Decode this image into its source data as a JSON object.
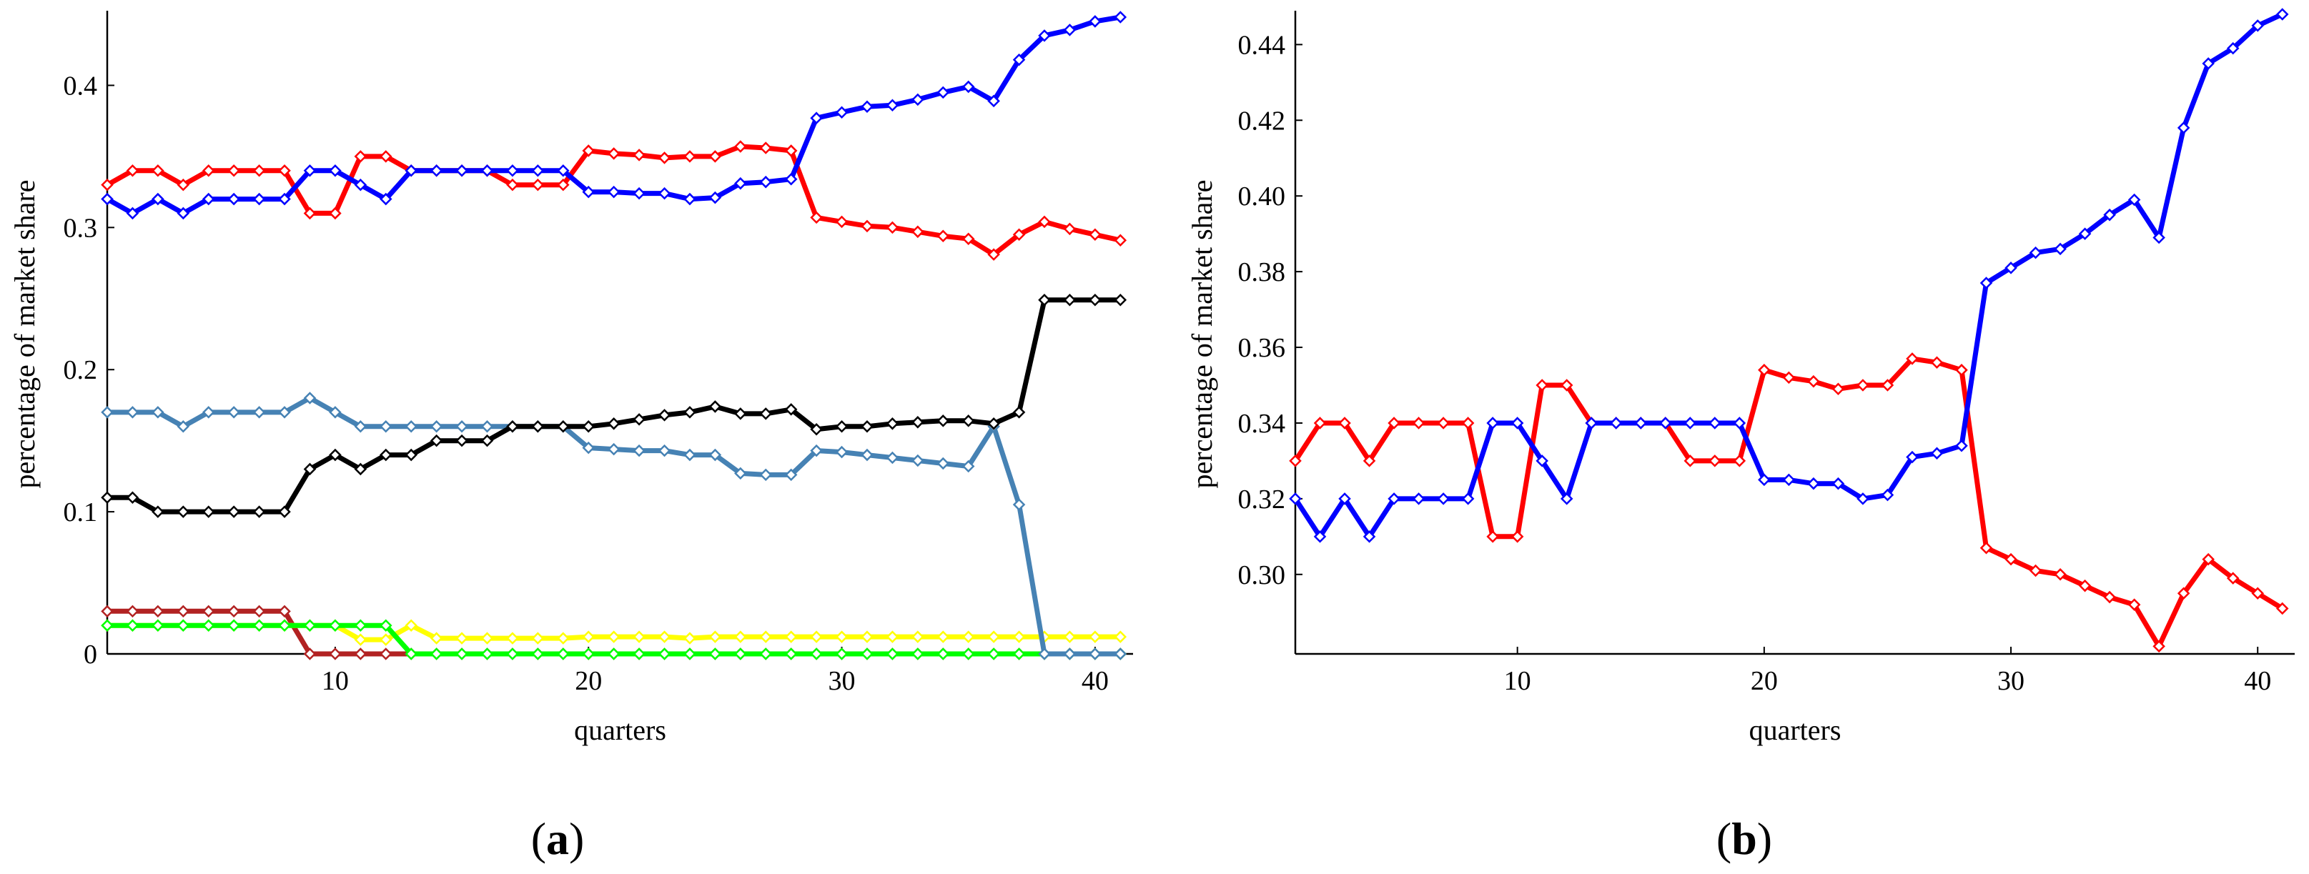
{
  "chart_data": [
    {
      "type": "line",
      "panel_label_open": "(",
      "panel_label_letter": "a",
      "panel_label_close": ")",
      "xlabel": "quarters",
      "ylabel": "percentage of market share",
      "xlim": [
        1,
        41.5
      ],
      "ylim": [
        0,
        0.45
      ],
      "xticks": [
        10,
        20,
        30,
        40
      ],
      "xtick_labels": [
        "10",
        "20",
        "30",
        "40"
      ],
      "yticks": [
        0,
        0.1,
        0.2,
        0.3,
        0.4
      ],
      "ytick_labels": [
        "0",
        "0.1",
        "0.2",
        "0.3",
        "0.4"
      ],
      "x": [
        1,
        2,
        3,
        4,
        5,
        6,
        7,
        8,
        9,
        10,
        11,
        12,
        13,
        14,
        15,
        16,
        17,
        18,
        19,
        20,
        21,
        22,
        23,
        24,
        25,
        26,
        27,
        28,
        29,
        30,
        31,
        32,
        33,
        34,
        35,
        36,
        37,
        38,
        39,
        40,
        41
      ],
      "series": [
        {
          "name": "blue",
          "color": "#0000ff",
          "values": [
            0.32,
            0.31,
            0.32,
            0.31,
            0.32,
            0.32,
            0.32,
            0.32,
            0.34,
            0.34,
            0.33,
            0.32,
            0.34,
            0.34,
            0.34,
            0.34,
            0.34,
            0.34,
            0.34,
            0.325,
            0.325,
            0.324,
            0.324,
            0.32,
            0.321,
            0.331,
            0.332,
            0.334,
            0.377,
            0.381,
            0.385,
            0.386,
            0.39,
            0.395,
            0.399,
            0.389,
            0.418,
            0.435,
            0.439,
            0.445,
            0.448
          ]
        },
        {
          "name": "red",
          "color": "#ff0000",
          "values": [
            0.33,
            0.34,
            0.34,
            0.33,
            0.34,
            0.34,
            0.34,
            0.34,
            0.31,
            0.31,
            0.35,
            0.35,
            0.34,
            0.34,
            0.34,
            0.34,
            0.33,
            0.33,
            0.33,
            0.354,
            0.352,
            0.351,
            0.349,
            0.35,
            0.35,
            0.357,
            0.356,
            0.354,
            0.307,
            0.304,
            0.301,
            0.3,
            0.297,
            0.294,
            0.292,
            0.281,
            0.295,
            0.304,
            0.299,
            0.295,
            0.291
          ]
        },
        {
          "name": "black",
          "color": "#000000",
          "values": [
            0.11,
            0.11,
            0.1,
            0.1,
            0.1,
            0.1,
            0.1,
            0.1,
            0.13,
            0.14,
            0.13,
            0.14,
            0.14,
            0.15,
            0.15,
            0.15,
            0.16,
            0.16,
            0.16,
            0.16,
            0.162,
            0.165,
            0.168,
            0.17,
            0.174,
            0.169,
            0.169,
            0.172,
            0.158,
            0.16,
            0.16,
            0.162,
            0.163,
            0.164,
            0.164,
            0.162,
            0.17,
            0.249,
            0.249,
            0.249,
            0.249
          ]
        },
        {
          "name": "steelblue",
          "color": "#4682b4",
          "values": [
            0.17,
            0.17,
            0.17,
            0.16,
            0.17,
            0.17,
            0.17,
            0.17,
            0.18,
            0.17,
            0.16,
            0.16,
            0.16,
            0.16,
            0.16,
            0.16,
            0.16,
            0.16,
            0.16,
            0.145,
            0.144,
            0.143,
            0.143,
            0.14,
            0.14,
            0.127,
            0.126,
            0.126,
            0.143,
            0.142,
            0.14,
            0.138,
            0.136,
            0.134,
            0.132,
            0.16,
            0.105,
            0,
            0,
            0,
            0
          ]
        },
        {
          "name": "green",
          "color": "#00ff00",
          "values": [
            0.02,
            0.02,
            0.02,
            0.02,
            0.02,
            0.02,
            0.02,
            0.02,
            0.02,
            0.02,
            0.02,
            0.02,
            0,
            0,
            0,
            0,
            0,
            0,
            0,
            0,
            0,
            0,
            0,
            0,
            0,
            0,
            0,
            0,
            0,
            0,
            0,
            0,
            0,
            0,
            0,
            0,
            0,
            0,
            0,
            0,
            0
          ]
        },
        {
          "name": "yellow",
          "color": "#ffff00",
          "values": [
            0.02,
            0.02,
            0.02,
            0.02,
            0.02,
            0.02,
            0.02,
            0.02,
            0.02,
            0.02,
            0.01,
            0.01,
            0.02,
            0.011,
            0.011,
            0.011,
            0.011,
            0.011,
            0.011,
            0.012,
            0.012,
            0.012,
            0.012,
            0.011,
            0.012,
            0.012,
            0.012,
            0.012,
            0.012,
            0.012,
            0.012,
            0.012,
            0.012,
            0.012,
            0.012,
            0.012,
            0.012,
            0.012,
            0.012,
            0.012,
            0.012
          ]
        },
        {
          "name": "brown",
          "color": "#b22222",
          "values": [
            0.03,
            0.03,
            0.03,
            0.03,
            0.03,
            0.03,
            0.03,
            0.03,
            0,
            0,
            0,
            0,
            0,
            0,
            0,
            0,
            0,
            0,
            0,
            0,
            0,
            0,
            0,
            0,
            0,
            0,
            0,
            0,
            0,
            0,
            0,
            0,
            0,
            0,
            0,
            0,
            0,
            0,
            0,
            0,
            0
          ]
        }
      ]
    },
    {
      "type": "line",
      "panel_label_open": "(",
      "panel_label_letter": "b",
      "panel_label_close": ")",
      "xlabel": "quarters",
      "ylabel": "percentage of market share",
      "xlim": [
        1,
        41.5
      ],
      "ylim": [
        0.279,
        0.448
      ],
      "xticks": [
        10,
        20,
        30,
        40
      ],
      "xtick_labels": [
        "10",
        "20",
        "30",
        "40"
      ],
      "yticks": [
        0.3,
        0.32,
        0.34,
        0.36,
        0.38,
        0.4,
        0.42,
        0.44
      ],
      "ytick_labels": [
        "0.30",
        "0.32",
        "0.34",
        "0.36",
        "0.38",
        "0.40",
        "0.42",
        "0.44"
      ],
      "x": [
        1,
        2,
        3,
        4,
        5,
        6,
        7,
        8,
        9,
        10,
        11,
        12,
        13,
        14,
        15,
        16,
        17,
        18,
        19,
        20,
        21,
        22,
        23,
        24,
        25,
        26,
        27,
        28,
        29,
        30,
        31,
        32,
        33,
        34,
        35,
        36,
        37,
        38,
        39,
        40,
        41
      ],
      "series": [
        {
          "name": "blue",
          "color": "#0000ff",
          "values": [
            0.32,
            0.31,
            0.32,
            0.31,
            0.32,
            0.32,
            0.32,
            0.32,
            0.34,
            0.34,
            0.33,
            0.32,
            0.34,
            0.34,
            0.34,
            0.34,
            0.34,
            0.34,
            0.34,
            0.325,
            0.325,
            0.324,
            0.324,
            0.32,
            0.321,
            0.331,
            0.332,
            0.334,
            0.377,
            0.381,
            0.385,
            0.386,
            0.39,
            0.395,
            0.399,
            0.389,
            0.418,
            0.435,
            0.439,
            0.445,
            0.448
          ]
        },
        {
          "name": "red",
          "color": "#ff0000",
          "values": [
            0.33,
            0.34,
            0.34,
            0.33,
            0.34,
            0.34,
            0.34,
            0.34,
            0.31,
            0.31,
            0.35,
            0.35,
            0.34,
            0.34,
            0.34,
            0.34,
            0.33,
            0.33,
            0.33,
            0.354,
            0.352,
            0.351,
            0.349,
            0.35,
            0.35,
            0.357,
            0.356,
            0.354,
            0.307,
            0.304,
            0.301,
            0.3,
            0.297,
            0.294,
            0.292,
            0.281,
            0.295,
            0.304,
            0.299,
            0.295,
            0.291
          ]
        }
      ]
    }
  ]
}
